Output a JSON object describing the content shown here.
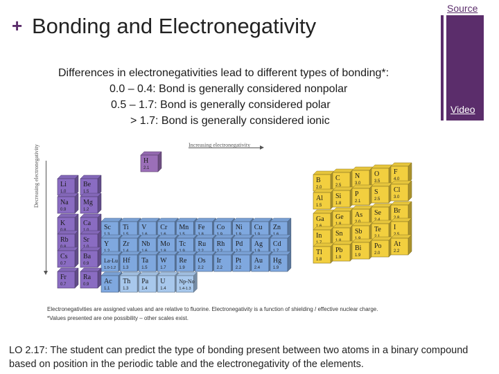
{
  "header": {
    "plus": "+",
    "title": "Bonding and Electronegativity",
    "source_link": "Source",
    "video_link": "Video"
  },
  "lines": [
    "Differences in electronegativities lead to different types of bonding*:",
    "0.0 – 0.4: Bond is generally considered nonpolar",
    "0.5 – 1.7: Bond is generally considered polar",
    "> 1.7: Bond is generally considered ionic"
  ],
  "chart": {
    "axis_top": "Increasing electronegativity",
    "axis_left": "Decreasing electronegativity",
    "elements": [
      {
        "s": "H",
        "v": "2.1",
        "c": 1,
        "r": 1
      },
      {
        "s": "Li",
        "v": "1.0",
        "c": 1,
        "r": 2
      },
      {
        "s": "Be",
        "v": "1.5",
        "c": 2,
        "r": 2
      },
      {
        "s": "B",
        "v": "2.0",
        "c": 13,
        "r": 2
      },
      {
        "s": "C",
        "v": "2.5",
        "c": 14,
        "r": 2
      },
      {
        "s": "N",
        "v": "3.0",
        "c": 15,
        "r": 2
      },
      {
        "s": "O",
        "v": "3.5",
        "c": 16,
        "r": 2
      },
      {
        "s": "F",
        "v": "4.0",
        "c": 17,
        "r": 2
      },
      {
        "s": "Na",
        "v": "0.9",
        "c": 1,
        "r": 3
      },
      {
        "s": "Mg",
        "v": "1.2",
        "c": 2,
        "r": 3
      },
      {
        "s": "Al",
        "v": "1.5",
        "c": 13,
        "r": 3
      },
      {
        "s": "Si",
        "v": "1.8",
        "c": 14,
        "r": 3
      },
      {
        "s": "P",
        "v": "2.1",
        "c": 15,
        "r": 3
      },
      {
        "s": "S",
        "v": "2.5",
        "c": 16,
        "r": 3
      },
      {
        "s": "Cl",
        "v": "3.0",
        "c": 17,
        "r": 3
      },
      {
        "s": "K",
        "v": "0.8",
        "c": 1,
        "r": 4
      },
      {
        "s": "Ca",
        "v": "1.0",
        "c": 2,
        "r": 4
      },
      {
        "s": "Sc",
        "v": "1.3",
        "c": 3,
        "r": 4
      },
      {
        "s": "Ti",
        "v": "1.5",
        "c": 4,
        "r": 4
      },
      {
        "s": "V",
        "v": "1.6",
        "c": 5,
        "r": 4
      },
      {
        "s": "Cr",
        "v": "1.6",
        "c": 6,
        "r": 4
      },
      {
        "s": "Mn",
        "v": "1.5",
        "c": 7,
        "r": 4
      },
      {
        "s": "Fe",
        "v": "1.8",
        "c": 8,
        "r": 4
      },
      {
        "s": "Co",
        "v": "1.9",
        "c": 9,
        "r": 4
      },
      {
        "s": "Ni",
        "v": "1.9",
        "c": 10,
        "r": 4
      },
      {
        "s": "Cu",
        "v": "1.9",
        "c": 11,
        "r": 4
      },
      {
        "s": "Zn",
        "v": "1.6",
        "c": 12,
        "r": 4
      },
      {
        "s": "Ga",
        "v": "1.6",
        "c": 13,
        "r": 4
      },
      {
        "s": "Ge",
        "v": "1.8",
        "c": 14,
        "r": 4
      },
      {
        "s": "As",
        "v": "2.0",
        "c": 15,
        "r": 4
      },
      {
        "s": "Se",
        "v": "2.4",
        "c": 16,
        "r": 4
      },
      {
        "s": "Br",
        "v": "2.8",
        "c": 17,
        "r": 4
      },
      {
        "s": "Rb",
        "v": "0.8",
        "c": 1,
        "r": 5
      },
      {
        "s": "Sr",
        "v": "1.0",
        "c": 2,
        "r": 5
      },
      {
        "s": "Y",
        "v": "1.2",
        "c": 3,
        "r": 5
      },
      {
        "s": "Zr",
        "v": "1.4",
        "c": 4,
        "r": 5
      },
      {
        "s": "Nb",
        "v": "1.6",
        "c": 5,
        "r": 5
      },
      {
        "s": "Mo",
        "v": "1.8",
        "c": 6,
        "r": 5
      },
      {
        "s": "Tc",
        "v": "1.9",
        "c": 7,
        "r": 5
      },
      {
        "s": "Ru",
        "v": "2.2",
        "c": 8,
        "r": 5
      },
      {
        "s": "Rh",
        "v": "2.2",
        "c": 9,
        "r": 5
      },
      {
        "s": "Pd",
        "v": "2.2",
        "c": 10,
        "r": 5
      },
      {
        "s": "Ag",
        "v": "1.9",
        "c": 11,
        "r": 5
      },
      {
        "s": "Cd",
        "v": "1.7",
        "c": 12,
        "r": 5
      },
      {
        "s": "In",
        "v": "1.7",
        "c": 13,
        "r": 5
      },
      {
        "s": "Sn",
        "v": "1.8",
        "c": 14,
        "r": 5
      },
      {
        "s": "Sb",
        "v": "1.9",
        "c": 15,
        "r": 5
      },
      {
        "s": "Te",
        "v": "2.1",
        "c": 16,
        "r": 5
      },
      {
        "s": "I",
        "v": "2.5",
        "c": 17,
        "r": 5
      },
      {
        "s": "Cs",
        "v": "0.7",
        "c": 1,
        "r": 6
      },
      {
        "s": "Ba",
        "v": "0.9",
        "c": 2,
        "r": 6
      },
      {
        "s": "La-Lu",
        "v": "1.0-1.2",
        "c": 3,
        "r": 6
      },
      {
        "s": "Hf",
        "v": "1.3",
        "c": 4,
        "r": 6
      },
      {
        "s": "Ta",
        "v": "1.5",
        "c": 5,
        "r": 6
      },
      {
        "s": "W",
        "v": "1.7",
        "c": 6,
        "r": 6
      },
      {
        "s": "Re",
        "v": "1.9",
        "c": 7,
        "r": 6
      },
      {
        "s": "Os",
        "v": "2.2",
        "c": 8,
        "r": 6
      },
      {
        "s": "Ir",
        "v": "2.2",
        "c": 9,
        "r": 6
      },
      {
        "s": "Pt",
        "v": "2.2",
        "c": 10,
        "r": 6
      },
      {
        "s": "Au",
        "v": "2.4",
        "c": 11,
        "r": 6
      },
      {
        "s": "Hg",
        "v": "1.9",
        "c": 12,
        "r": 6
      },
      {
        "s": "Tl",
        "v": "1.8",
        "c": 13,
        "r": 6
      },
      {
        "s": "Pb",
        "v": "1.9",
        "c": 14,
        "r": 6
      },
      {
        "s": "Bi",
        "v": "1.9",
        "c": 15,
        "r": 6
      },
      {
        "s": "Po",
        "v": "2.0",
        "c": 16,
        "r": 6
      },
      {
        "s": "At",
        "v": "2.2",
        "c": 17,
        "r": 6
      },
      {
        "s": "Fr",
        "v": "0.7",
        "c": 1,
        "r": 7
      },
      {
        "s": "Ra",
        "v": "0.9",
        "c": 2,
        "r": 7
      },
      {
        "s": "Ac",
        "v": "1.1",
        "c": 3,
        "r": 7
      },
      {
        "s": "Th",
        "v": "1.3",
        "c": 4,
        "r": 7
      },
      {
        "s": "Pa",
        "v": "1.4",
        "c": 5,
        "r": 7
      },
      {
        "s": "U",
        "v": "1.4",
        "c": 6,
        "r": 7
      },
      {
        "s": "Np-No",
        "v": "1.4-1.3",
        "c": 7,
        "r": 7
      }
    ],
    "colors": {
      "h": "#9b6fb8",
      "s_block": "#8a6cc2",
      "d_block": "#7fa8df",
      "f_block": "#a8c8ec",
      "p_block": "#f2cf3f"
    }
  },
  "footnotes": {
    "line1": "Electronegativities are assigned values and are relative to fluorine. Electronegativity is a function of shielding / effective nuclear charge.",
    "line2": "*Values presented are one possibility – other scales exist."
  },
  "lo": "LO 2.17:  The student can predict the type of bonding present between two atoms in a binary compound based on position in the periodic table and the electronegativity of the elements."
}
